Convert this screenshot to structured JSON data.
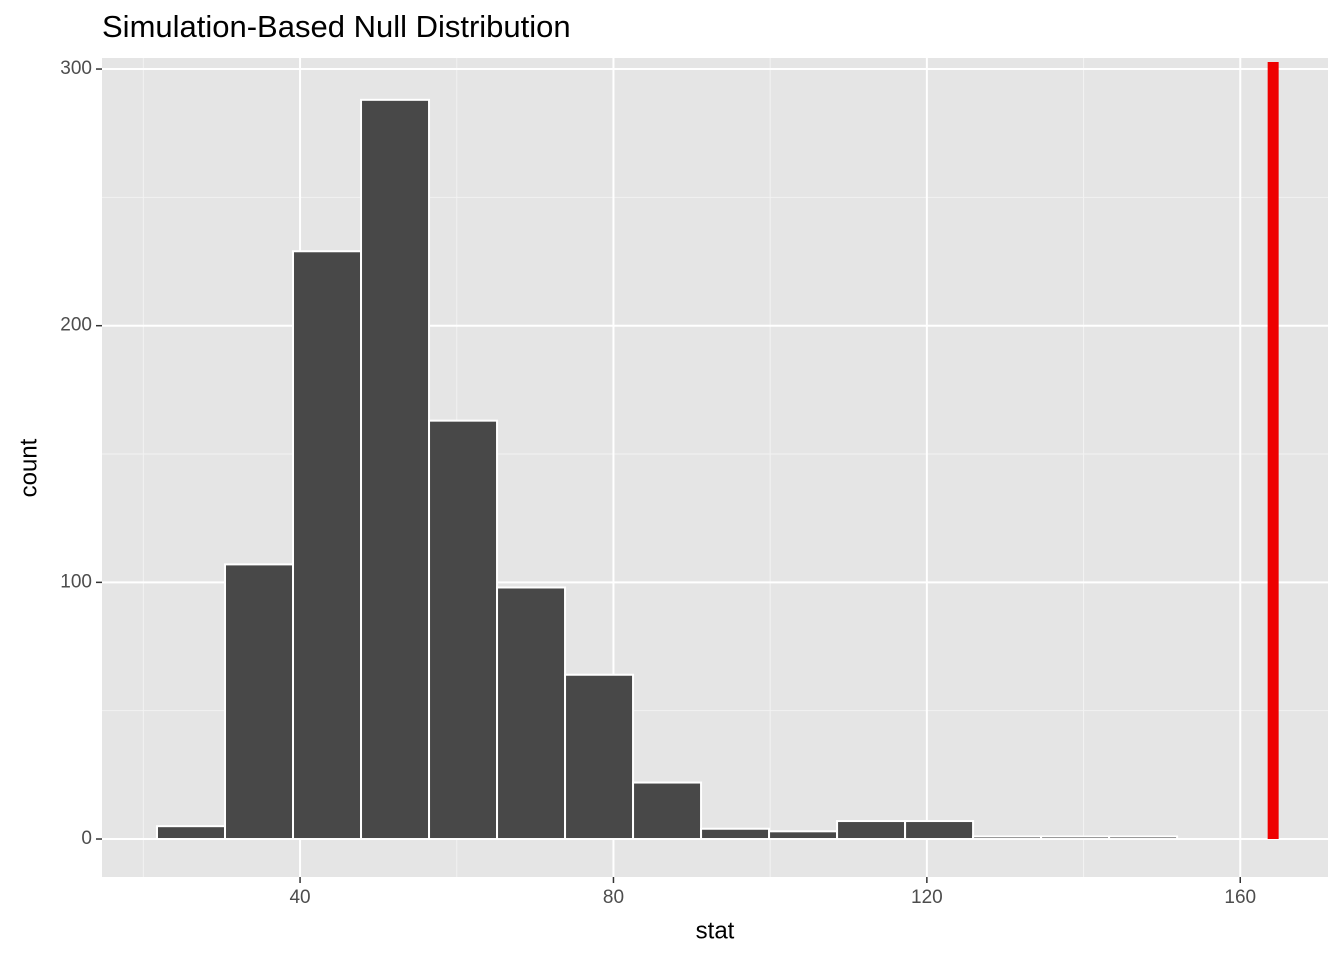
{
  "chart_data": {
    "type": "histogram",
    "title": "Simulation-Based Null Distribution",
    "x_label": "stat",
    "y_label": "count",
    "bins": [
      21.74,
      30.42,
      39.1,
      47.78,
      56.46,
      65.14,
      73.82,
      82.5,
      91.18,
      99.86,
      108.54,
      117.22,
      125.9,
      134.58,
      143.26,
      151.94
    ],
    "counts": [
      5,
      107,
      229,
      288,
      163,
      98,
      64,
      22,
      4,
      3,
      7,
      7,
      1,
      1,
      1
    ],
    "color": "#484848",
    "xlim": [
      14.72,
      171.2
    ],
    "ylim": [
      -14.8,
      304.3
    ],
    "xticks": [
      40,
      80,
      120,
      160
    ],
    "yticks": [
      0,
      100,
      200,
      300
    ],
    "x_minor_ticks": [
      20,
      60,
      100,
      140
    ],
    "y_minor_ticks": [
      50,
      150,
      250
    ],
    "grid": true,
    "obs_stat": 164.2,
    "obs_stat_color": "#ee0000"
  }
}
